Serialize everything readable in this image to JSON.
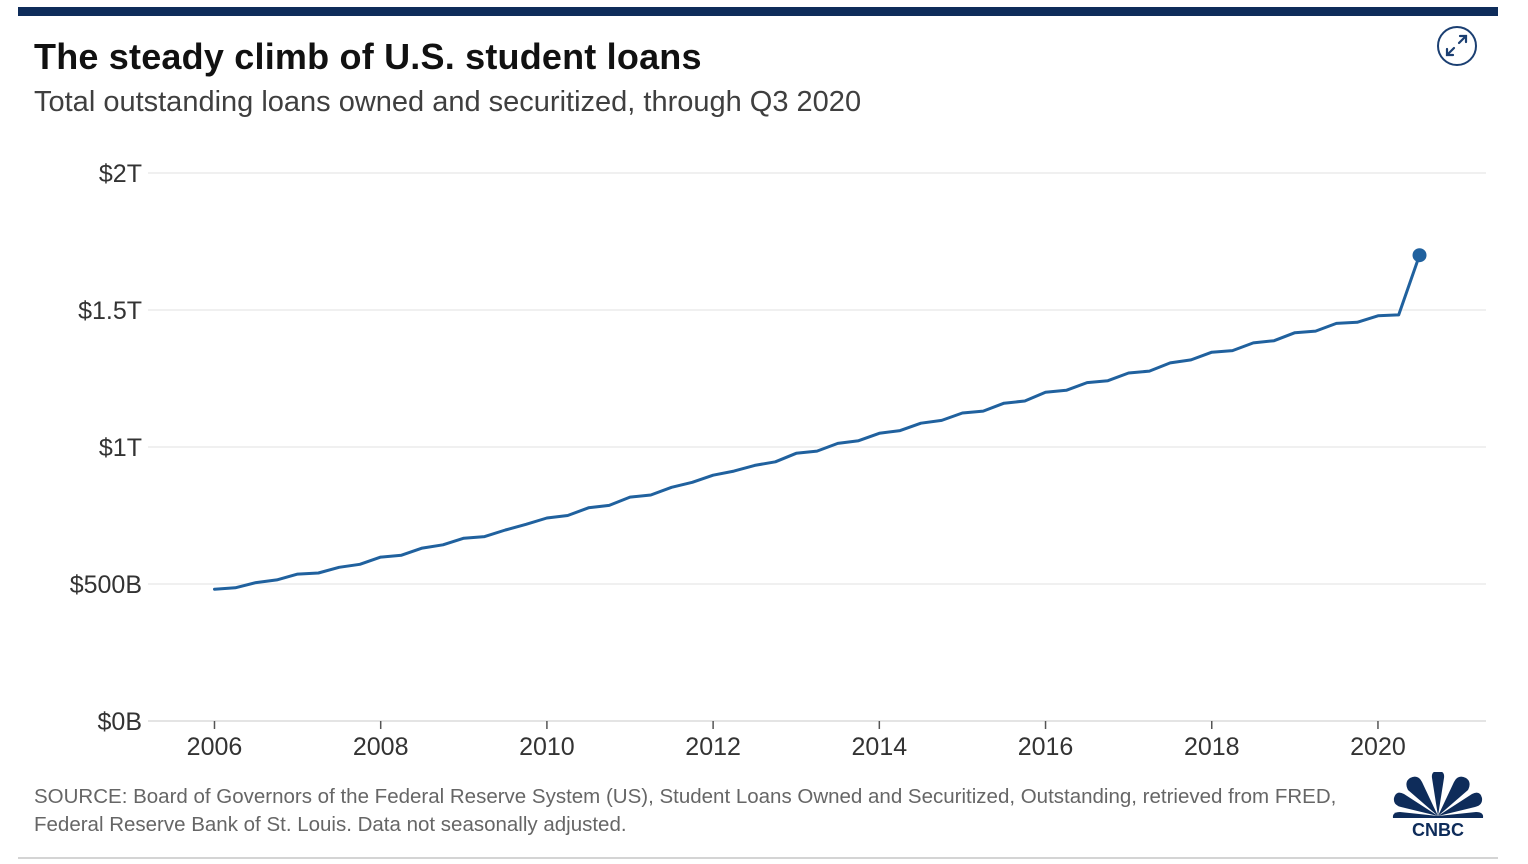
{
  "header": {
    "title": "The steady climb of U.S. student loans",
    "subtitle": "Total outstanding loans owned and securitized, through Q3 2020"
  },
  "controls": {
    "expand_icon": "expand-arrows-icon"
  },
  "footer": {
    "source": "SOURCE: Board of Governors of the Federal Reserve System (US), Student Loans Owned and Securitized, Outstanding, retrieved from FRED, Federal Reserve Bank of St. Louis. Data not seasonally adjusted.",
    "logo_text": "CNBC",
    "logo_icon": "cnbc-peacock-logo"
  },
  "colors": {
    "line": "#20619e",
    "header_rule": "#0e2c5a",
    "grid": "#ececec"
  },
  "chart_data": {
    "type": "line",
    "title": "The steady climb of U.S. student loans",
    "subtitle": "Total outstanding loans owned and securitized, through Q3 2020",
    "xlabel": "",
    "ylabel": "",
    "xlim": [
      2005.2,
      2021.3
    ],
    "ylim": [
      0,
      2000
    ],
    "y_unit": "billions of dollars",
    "x_ticks": [
      2006,
      2008,
      2010,
      2012,
      2014,
      2016,
      2018,
      2020
    ],
    "x_tick_labels": [
      "2006",
      "2008",
      "2010",
      "2012",
      "2014",
      "2016",
      "2018",
      "2020"
    ],
    "y_ticks": [
      0,
      500,
      1000,
      1500,
      2000
    ],
    "y_tick_labels": [
      "$0B",
      "$500B",
      "$1T",
      "$1.5T",
      "$2T"
    ],
    "grid": true,
    "end_marker": true,
    "series": [
      {
        "color": "#20619e",
        "x": [
          2006.0,
          2006.25,
          2006.5,
          2006.75,
          2007.0,
          2007.25,
          2007.5,
          2007.75,
          2008.0,
          2008.25,
          2008.5,
          2008.75,
          2009.0,
          2009.25,
          2009.5,
          2009.75,
          2010.0,
          2010.25,
          2010.5,
          2010.75,
          2011.0,
          2011.25,
          2011.5,
          2011.75,
          2012.0,
          2012.25,
          2012.5,
          2012.75,
          2013.0,
          2013.25,
          2013.5,
          2013.75,
          2014.0,
          2014.25,
          2014.5,
          2014.75,
          2015.0,
          2015.25,
          2015.5,
          2015.75,
          2016.0,
          2016.25,
          2016.5,
          2016.75,
          2017.0,
          2017.25,
          2017.5,
          2017.75,
          2018.0,
          2018.25,
          2018.5,
          2018.75,
          2019.0,
          2019.25,
          2019.5,
          2019.75,
          2020.0,
          2020.25,
          2020.5
        ],
        "values": [
          481,
          486,
          505,
          515,
          536,
          540,
          561,
          572,
          598,
          605,
          631,
          643,
          667,
          673,
          697,
          718,
          741,
          750,
          778,
          787,
          817,
          825,
          853,
          871,
          897,
          912,
          933,
          946,
          977,
          985,
          1013,
          1023,
          1050,
          1060,
          1087,
          1097,
          1124,
          1131,
          1160,
          1168,
          1200,
          1207,
          1235,
          1242,
          1270,
          1277,
          1307,
          1318,
          1346,
          1352,
          1380,
          1388,
          1417,
          1423,
          1451,
          1455,
          1479,
          1482,
          1700
        ]
      }
    ]
  }
}
